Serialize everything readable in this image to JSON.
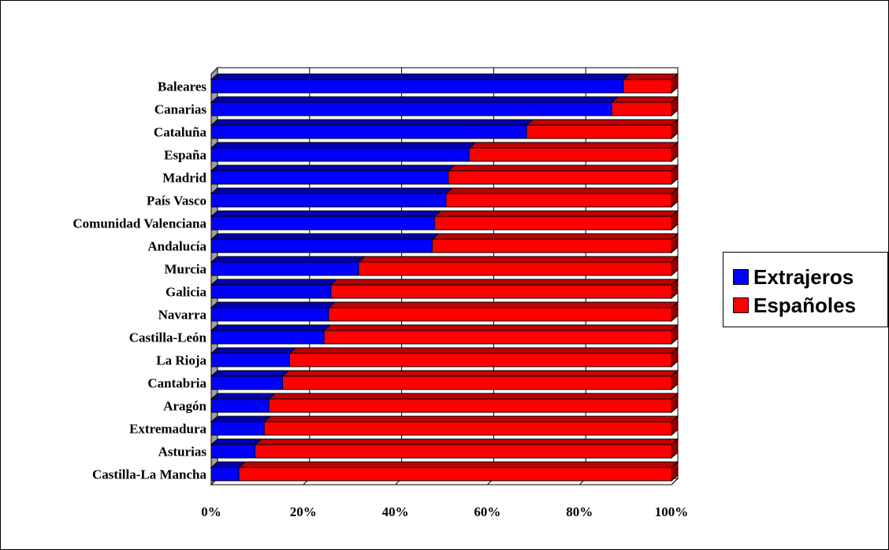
{
  "chart_data": {
    "type": "bar",
    "orientation": "horizontal",
    "stacked": "percent",
    "three_d": true,
    "categories": [
      "Baleares",
      "Canarias",
      "Cataluña",
      "España",
      "Madrid",
      "País Vasco",
      "Comunidad Valenciana",
      "Andalucía",
      "Murcia",
      "Galicia",
      "Navarra",
      "Castilla-León",
      "La Rioja",
      "Cantabria",
      "Aragón",
      "Extremadura",
      "Asturias",
      "Castilla-La Mancha"
    ],
    "series": [
      {
        "name": "Extrajeros",
        "color": "#0000ff",
        "values": [
          89.5,
          87,
          68.5,
          56,
          51.5,
          51,
          48.5,
          48,
          32,
          26,
          25.5,
          24.5,
          17,
          15.5,
          12.5,
          11.5,
          9.5,
          6
        ]
      },
      {
        "name": "Españoles",
        "color": "#ff0000",
        "values": [
          10.5,
          13,
          31.5,
          44,
          48.5,
          49,
          51.5,
          52,
          68,
          74,
          74.5,
          75.5,
          83,
          84.5,
          87.5,
          88.5,
          90.5,
          94
        ]
      }
    ],
    "xlim": [
      0,
      100
    ],
    "x_ticks": [
      "0%",
      "20%",
      "40%",
      "60%",
      "80%",
      "100%"
    ],
    "grid": true,
    "legend_position": "right"
  }
}
